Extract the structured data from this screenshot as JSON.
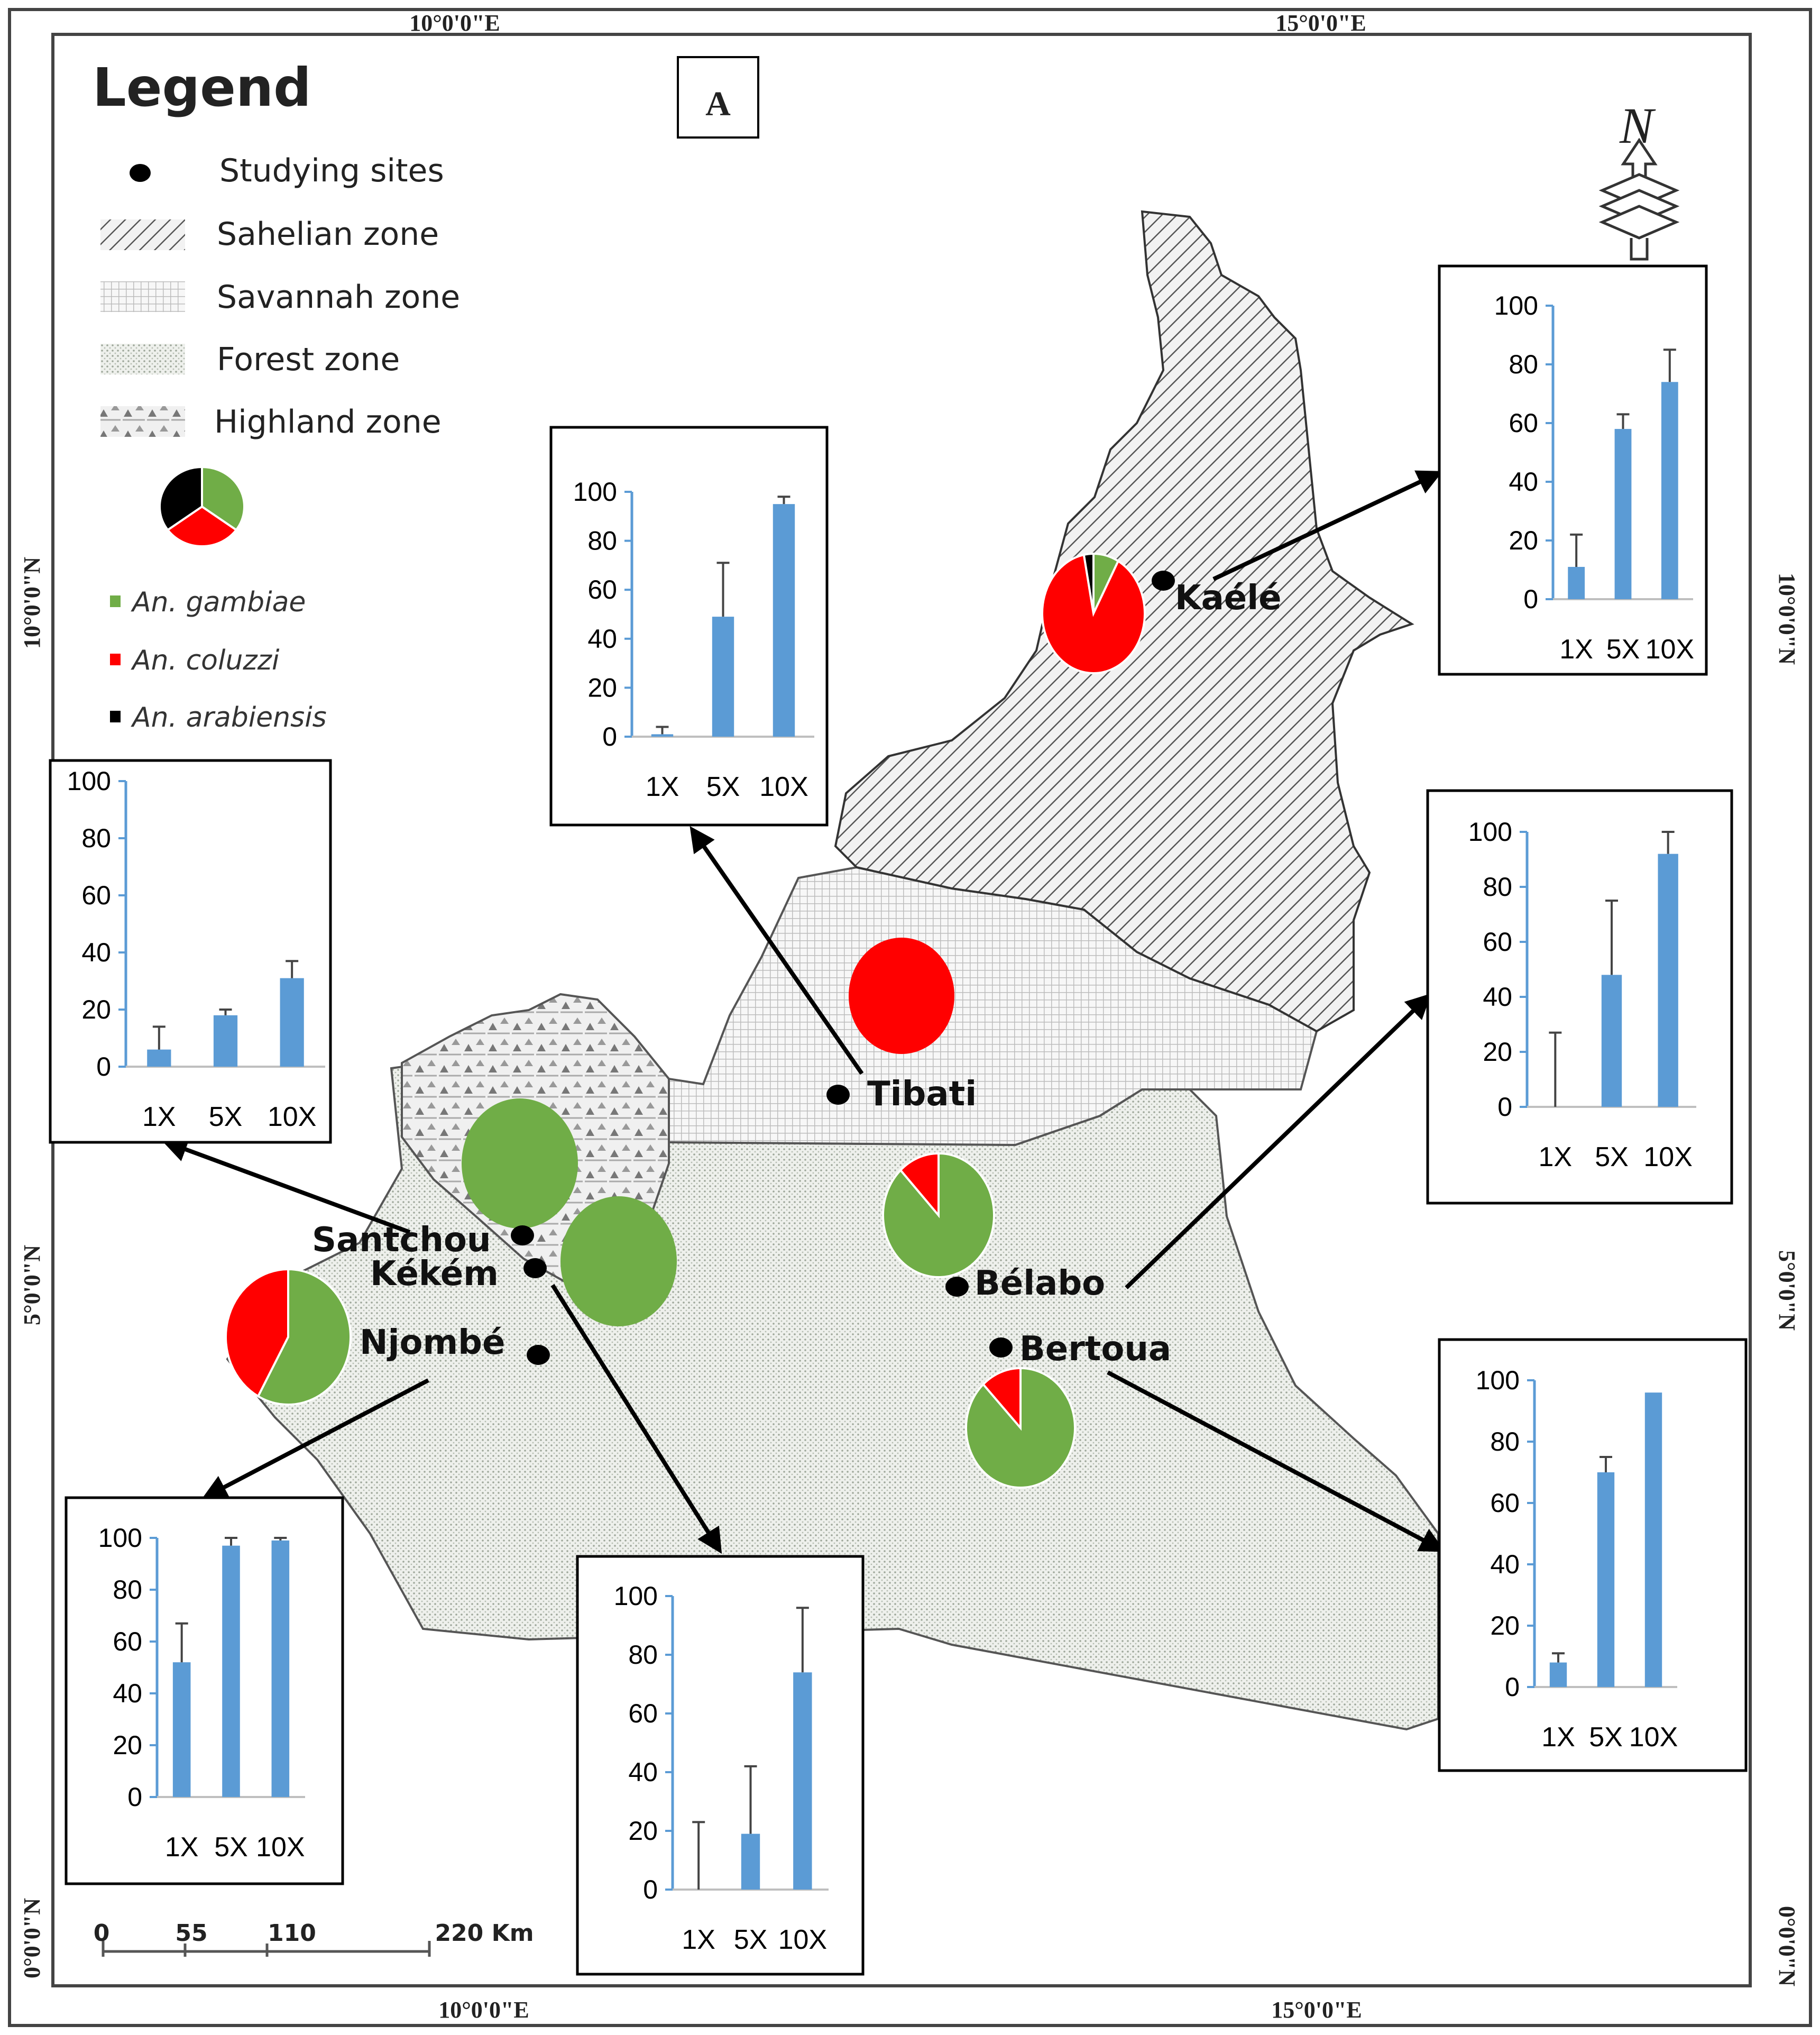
{
  "panel_label": "A",
  "legend": {
    "title": "Legend",
    "items": [
      {
        "label": "Studying sites"
      },
      {
        "label": "Sahelian zone"
      },
      {
        "label": "Savannah zone"
      },
      {
        "label": "Forest zone"
      },
      {
        "label": "Highland zone"
      }
    ],
    "species": [
      {
        "label": "An. gambiae",
        "color": "#70ad47"
      },
      {
        "label": "An. coluzzi",
        "color": "#ff0000"
      },
      {
        "label": "An. arabiensis",
        "color": "#000000"
      }
    ],
    "sample_pie": [
      0.35,
      0.3,
      0.35
    ]
  },
  "coords": {
    "top_left": "10°0'0\"E",
    "top_right": "15°0'0\"E",
    "bottom_left": "10°0'0\"E",
    "bottom_right": "15°0'0\"E",
    "left_upper": "10°0'0\"N",
    "left_middle": "5°0'0\"N",
    "left_lower": "0°0'0\"N",
    "right_upper": "10°0'0\"N",
    "right_middle": "5°0'0\"N",
    "right_lower": "0°0'0\"N"
  },
  "north_label": "N",
  "scale_bar": {
    "labels": [
      "0",
      "55",
      "110",
      "220 Km"
    ]
  },
  "sites": [
    {
      "name": "Kaélé"
    },
    {
      "name": "Tibati"
    },
    {
      "name": "Santchou"
    },
    {
      "name": "Kékém"
    },
    {
      "name": "Njombé"
    },
    {
      "name": "Bélabo"
    },
    {
      "name": "Bertoua"
    }
  ],
  "pies": [
    {
      "site": "Kaélé",
      "gambiae": 0.08,
      "coluzzi": 0.89,
      "arabiensis": 0.03
    },
    {
      "site": "Tibati",
      "gambiae": 0.0,
      "coluzzi": 1.0,
      "arabiensis": 0.0
    },
    {
      "site": "Santchou",
      "gambiae": 1.0,
      "coluzzi": 0.0,
      "arabiensis": 0.0
    },
    {
      "site": "Kékém",
      "gambiae": 1.0,
      "coluzzi": 0.0,
      "arabiensis": 0.0
    },
    {
      "site": "Njombé",
      "gambiae": 0.58,
      "coluzzi": 0.42,
      "arabiensis": 0.0
    },
    {
      "site": "Bélabo",
      "gambiae": 0.88,
      "coluzzi": 0.12,
      "arabiensis": 0.0
    },
    {
      "site": "Bertoua",
      "gambiae": 0.88,
      "coluzzi": 0.12,
      "arabiensis": 0.0
    }
  ],
  "chart_data": [
    {
      "type": "bar",
      "site": "Kaélé",
      "categories": [
        "1X",
        "5X",
        "10X"
      ],
      "values": [
        11,
        58,
        74
      ],
      "errors": [
        11,
        5,
        11
      ],
      "ylim": [
        0,
        100
      ],
      "yticks": [
        "0",
        "20",
        "40",
        "60",
        "80",
        "100"
      ]
    },
    {
      "type": "bar",
      "site": "Tibati",
      "categories": [
        "1X",
        "5X",
        "10X"
      ],
      "values": [
        1,
        49,
        95
      ],
      "errors": [
        3,
        22,
        3
      ],
      "ylim": [
        0,
        100
      ],
      "yticks": [
        "0",
        "20",
        "40",
        "60",
        "80",
        "100"
      ]
    },
    {
      "type": "bar",
      "site": "Santchou",
      "categories": [
        "1X",
        "5X",
        "10X"
      ],
      "values": [
        6,
        18,
        31
      ],
      "errors": [
        8,
        2,
        6
      ],
      "ylim": [
        0,
        100
      ],
      "yticks": [
        "0",
        "20",
        "40",
        "60",
        "80",
        "100"
      ]
    },
    {
      "type": "bar",
      "site": "Bélabo",
      "categories": [
        "1X",
        "5X",
        "10X"
      ],
      "values": [
        0,
        48,
        92
      ],
      "errors": [
        27,
        27,
        8
      ],
      "ylim": [
        0,
        100
      ],
      "yticks": [
        "0",
        "20",
        "40",
        "60",
        "80",
        "100"
      ]
    },
    {
      "type": "bar",
      "site": "Njombé",
      "categories": [
        "1X",
        "5X",
        "10X"
      ],
      "values": [
        52,
        97,
        99
      ],
      "errors": [
        15,
        3,
        1
      ],
      "ylim": [
        0,
        100
      ],
      "yticks": [
        "0",
        "20",
        "40",
        "60",
        "80",
        "100"
      ]
    },
    {
      "type": "bar",
      "site": "Kékém",
      "categories": [
        "1X",
        "5X",
        "10X"
      ],
      "values": [
        0,
        19,
        74
      ],
      "errors": [
        23,
        23,
        22
      ],
      "ylim": [
        0,
        100
      ],
      "yticks": [
        "0",
        "20",
        "40",
        "60",
        "80",
        "100"
      ]
    },
    {
      "type": "bar",
      "site": "Bertoua",
      "categories": [
        "1X",
        "5X",
        "10X"
      ],
      "values": [
        8,
        70,
        96
      ],
      "errors": [
        3,
        5,
        0
      ],
      "ylim": [
        0,
        100
      ],
      "yticks": [
        "0",
        "20",
        "40",
        "60",
        "80",
        "100"
      ]
    }
  ]
}
